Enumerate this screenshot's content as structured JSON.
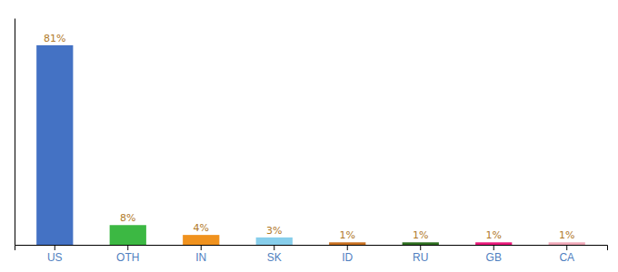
{
  "chart_data": {
    "type": "bar",
    "categories": [
      "US",
      "OTH",
      "IN",
      "SK",
      "ID",
      "RU",
      "GB",
      "CA"
    ],
    "values": [
      81,
      8,
      4,
      3,
      1,
      1,
      1,
      1
    ],
    "value_labels": [
      "81%",
      "8%",
      "4%",
      "3%",
      "1%",
      "1%",
      "1%",
      "1%"
    ],
    "colors": [
      "#4472c4",
      "#3cb843",
      "#f0921e",
      "#87ceeb",
      "#c87020",
      "#2d6e20",
      "#e8197a",
      "#f0a8b8"
    ],
    "ylim": [
      0,
      92
    ],
    "data_labels": true,
    "tick_labels": "x"
  }
}
